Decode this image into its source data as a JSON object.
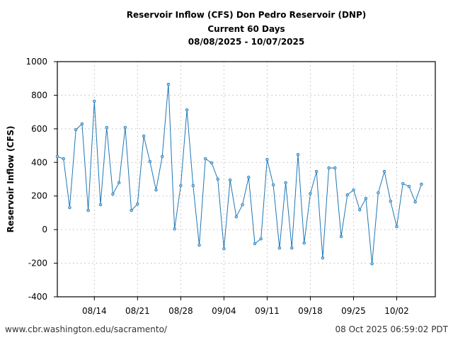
{
  "chart_data": {
    "type": "line",
    "title_lines": [
      "Reservoir Inflow (CFS) Don Pedro Reservoir (DNP)",
      "Current 60 Days",
      "08/08/2025 - 10/07/2025"
    ],
    "xlabel": "",
    "ylabel": "Reservoir Inflow (CFS)",
    "ylim": [
      -400,
      1000
    ],
    "yticks": [
      -400,
      -200,
      0,
      200,
      400,
      600,
      800,
      1000
    ],
    "x_start_date": "2025-08-08",
    "x_interval": "1 day",
    "xlim_days": [
      0,
      61.25
    ],
    "xticks": [
      {
        "day": 6,
        "label": "08/14"
      },
      {
        "day": 13,
        "label": "08/21"
      },
      {
        "day": 20,
        "label": "08/28"
      },
      {
        "day": 27,
        "label": "09/04"
      },
      {
        "day": 34,
        "label": "09/11"
      },
      {
        "day": 41,
        "label": "09/18"
      },
      {
        "day": 48,
        "label": "09/25"
      },
      {
        "day": 55,
        "label": "10/02"
      }
    ],
    "grid": true,
    "series": [
      {
        "name": "Reservoir Inflow",
        "color": "#1f77b4",
        "values": [
          435,
          422,
          131,
          595,
          629,
          114,
          764,
          148,
          608,
          211,
          279,
          608,
          114,
          152,
          557,
          405,
          236,
          435,
          865,
          4,
          262,
          713,
          262,
          -93,
          422,
          397,
          300,
          -114,
          295,
          76,
          148,
          312,
          -84,
          -55,
          418,
          266,
          -110,
          279,
          -110,
          447,
          -80,
          215,
          346,
          -169,
          367,
          367,
          -42,
          207,
          236,
          118,
          186,
          -203,
          219,
          346,
          169,
          17,
          274,
          257,
          165,
          270
        ]
      }
    ]
  },
  "footer": {
    "source": "www.cbr.washington.edu/sacramento/",
    "timestamp": "08 Oct 2025 06:59:02 PDT"
  }
}
